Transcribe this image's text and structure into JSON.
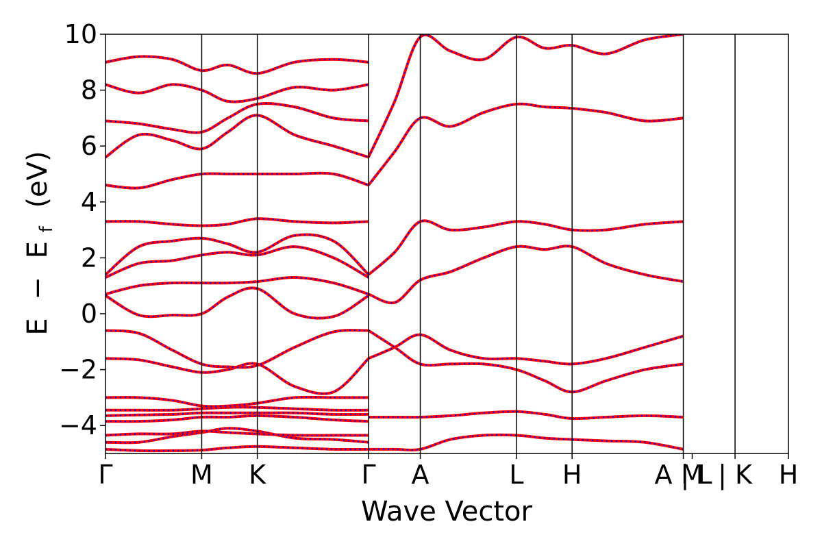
{
  "chart_data": {
    "type": "line",
    "title": "",
    "xlabel": "Wave Vector",
    "ylabel_parts": {
      "E": "E",
      "minus": "−",
      "Ef_main": "E",
      "Ef_sub": "f",
      "unit": "(eV)"
    },
    "ylim": [
      -5,
      10
    ],
    "yticks": [
      -4,
      -2,
      0,
      2,
      4,
      6,
      8,
      10
    ],
    "ytick_labels": [
      "−4",
      "−2",
      "0",
      "2",
      "4",
      "6",
      "8",
      "10"
    ],
    "xlim": [
      0,
      12.28
    ],
    "kpoints": [
      {
        "x": 0,
        "label": "Γ"
      },
      {
        "x": 1.73,
        "label": "M"
      },
      {
        "x": 2.73,
        "label": "K"
      },
      {
        "x": 4.73,
        "label": "Γ"
      },
      {
        "x": 5.66,
        "label": "A"
      },
      {
        "x": 7.39,
        "label": "L"
      },
      {
        "x": 8.39,
        "label": "H"
      },
      {
        "x": 10.39,
        "label": "A | L"
      },
      {
        "x": 10.55,
        "label": "M"
      },
      {
        "x": 11.32,
        "label": "| K"
      },
      {
        "x": 12.28,
        "label": "H"
      }
    ],
    "vlines": [
      1.73,
      2.73,
      4.73,
      5.66,
      7.39,
      8.39,
      10.39,
      11.32
    ],
    "series": [
      {
        "style": "solid",
        "color": "#ff0000"
      },
      {
        "style": "dotted",
        "color": "#0000ff"
      }
    ],
    "bands": [
      {
        "x": [
          0,
          0.6,
          1.2,
          1.73,
          2.2,
          2.73,
          3.4,
          4.1,
          4.73
        ],
        "y": [
          -4.85,
          -4.9,
          -4.9,
          -4.88,
          -4.8,
          -4.75,
          -4.8,
          -4.85,
          -4.85
        ]
      },
      {
        "x": [
          0,
          0.6,
          1.2,
          1.73,
          2.2,
          2.73,
          3.4,
          4.1,
          4.73
        ],
        "y": [
          -4.6,
          -4.6,
          -4.4,
          -4.25,
          -4.1,
          -4.2,
          -4.45,
          -4.5,
          -4.6
        ]
      },
      {
        "x": [
          0,
          0.6,
          1.2,
          1.73,
          2.2,
          2.73,
          3.4,
          4.1,
          4.73
        ],
        "y": [
          -4.35,
          -4.3,
          -4.3,
          -4.2,
          -4.25,
          -4.3,
          -4.35,
          -4.35,
          -4.35
        ]
      },
      {
        "x": [
          0,
          0.6,
          1.2,
          1.73,
          2.2,
          2.73,
          3.4,
          4.1,
          4.73
        ],
        "y": [
          -3.85,
          -3.85,
          -3.8,
          -3.7,
          -3.7,
          -3.65,
          -3.7,
          -3.8,
          -3.85
        ]
      },
      {
        "x": [
          0,
          0.6,
          1.2,
          1.73,
          2.2,
          2.73,
          3.4,
          4.1,
          4.73
        ],
        "y": [
          -3.65,
          -3.62,
          -3.6,
          -3.55,
          -3.55,
          -3.55,
          -3.55,
          -3.6,
          -3.6
        ]
      },
      {
        "x": [
          0,
          0.6,
          1.2,
          1.73,
          2.2,
          2.73,
          3.4,
          4.1,
          4.73
        ],
        "y": [
          -3.45,
          -3.45,
          -3.45,
          -3.4,
          -3.35,
          -3.35,
          -3.4,
          -3.45,
          -3.45
        ]
      },
      {
        "x": [
          0,
          0.6,
          1.2,
          1.73,
          2.2,
          2.73,
          3.4,
          4.1,
          4.73
        ],
        "y": [
          -3.0,
          -3.0,
          -3.1,
          -3.3,
          -3.3,
          -3.2,
          -3.0,
          -3.0,
          -3.0
        ]
      },
      {
        "x": [
          0,
          0.6,
          1.2,
          1.73,
          2.2,
          2.73,
          3.4,
          4.1,
          4.73
        ],
        "y": [
          -1.6,
          -1.65,
          -1.9,
          -2.1,
          -2.0,
          -1.8,
          -2.6,
          -2.8,
          -1.6
        ]
      },
      {
        "x": [
          0,
          0.6,
          1.2,
          1.73,
          2.2,
          2.73,
          3.4,
          4.1,
          4.73
        ],
        "y": [
          -0.6,
          -0.7,
          -1.3,
          -1.8,
          -1.9,
          -1.85,
          -1.2,
          -0.65,
          -0.6
        ]
      },
      {
        "x": [
          0,
          0.6,
          1.2,
          1.73,
          2.2,
          2.73,
          3.4,
          4.1,
          4.73
        ],
        "y": [
          0.65,
          -0.05,
          -0.05,
          0.0,
          0.6,
          0.9,
          0.0,
          -0.1,
          0.65
        ]
      },
      {
        "x": [
          0,
          0.6,
          1.2,
          1.73,
          2.2,
          2.73,
          3.4,
          4.1,
          4.73
        ],
        "y": [
          0.7,
          1.0,
          1.1,
          1.1,
          1.1,
          1.15,
          1.3,
          1.1,
          0.7
        ]
      },
      {
        "x": [
          0,
          0.6,
          1.2,
          1.73,
          2.2,
          2.73,
          3.4,
          4.1,
          4.73
        ],
        "y": [
          1.3,
          1.8,
          1.9,
          2.1,
          2.2,
          2.1,
          2.4,
          2.0,
          1.3
        ]
      },
      {
        "x": [
          0,
          0.6,
          1.2,
          1.73,
          2.2,
          2.73,
          3.4,
          4.1,
          4.73
        ],
        "y": [
          1.4,
          2.4,
          2.6,
          2.7,
          2.5,
          2.2,
          2.8,
          2.6,
          1.4
        ]
      },
      {
        "x": [
          0,
          0.6,
          1.2,
          1.73,
          2.2,
          2.73,
          3.4,
          4.1,
          4.73
        ],
        "y": [
          3.3,
          3.3,
          3.2,
          3.15,
          3.2,
          3.4,
          3.3,
          3.25,
          3.3
        ]
      },
      {
        "x": [
          0,
          0.6,
          1.2,
          1.73,
          2.2,
          2.73,
          3.4,
          4.1,
          4.73
        ],
        "y": [
          4.6,
          4.5,
          4.8,
          5.0,
          5.0,
          5.0,
          5.0,
          5.0,
          4.6
        ]
      },
      {
        "x": [
          0,
          0.6,
          1.2,
          1.73,
          2.2,
          2.73,
          3.4,
          4.1,
          4.73
        ],
        "y": [
          5.6,
          6.4,
          6.2,
          5.9,
          6.5,
          7.1,
          6.4,
          6.0,
          5.6
        ]
      },
      {
        "x": [
          0,
          0.6,
          1.2,
          1.73,
          2.2,
          2.73,
          3.4,
          4.1,
          4.73
        ],
        "y": [
          6.9,
          6.8,
          6.6,
          6.5,
          7.0,
          7.5,
          7.4,
          7.0,
          6.9
        ]
      },
      {
        "x": [
          0,
          0.6,
          1.2,
          1.73,
          2.2,
          2.73,
          3.4,
          4.1,
          4.73
        ],
        "y": [
          8.2,
          7.9,
          8.2,
          8.0,
          7.6,
          7.7,
          8.1,
          8.0,
          8.2
        ]
      },
      {
        "x": [
          0,
          0.6,
          1.2,
          1.73,
          2.2,
          2.73,
          3.4,
          4.1,
          4.73
        ],
        "y": [
          9.0,
          9.2,
          9.1,
          8.7,
          8.9,
          8.6,
          9.0,
          9.1,
          9.0
        ]
      },
      {
        "x": [
          4.73,
          5.2,
          5.66,
          6.2,
          6.8,
          7.39,
          7.9,
          8.39,
          9.0,
          9.7,
          10.39
        ],
        "y": [
          -4.85,
          -4.85,
          -4.85,
          -4.5,
          -4.35,
          -4.35,
          -4.45,
          -4.5,
          -4.55,
          -4.6,
          -4.85
        ]
      },
      {
        "x": [
          4.73,
          5.2,
          5.66,
          6.2,
          6.8,
          7.39,
          7.9,
          8.39,
          9.0,
          9.7,
          10.39
        ],
        "y": [
          -3.7,
          -3.7,
          -3.7,
          -3.65,
          -3.55,
          -3.5,
          -3.6,
          -3.75,
          -3.7,
          -3.65,
          -3.7
        ]
      },
      {
        "x": [
          4.73,
          5.2,
          5.66,
          6.2,
          6.8,
          7.39,
          7.9,
          8.39,
          9.0,
          9.7,
          10.39
        ],
        "y": [
          -1.6,
          -1.2,
          -0.75,
          -1.3,
          -1.6,
          -1.6,
          -1.7,
          -1.8,
          -1.6,
          -1.2,
          -0.8
        ]
      },
      {
        "x": [
          4.73,
          5.2,
          5.66,
          6.2,
          6.8,
          7.39,
          7.9,
          8.39,
          9.0,
          9.7,
          10.39
        ],
        "y": [
          -0.6,
          -1.2,
          -1.8,
          -1.8,
          -1.8,
          -2.0,
          -2.4,
          -2.8,
          -2.4,
          -2.0,
          -1.8
        ]
      },
      {
        "x": [
          4.73,
          5.2,
          5.66,
          6.2,
          6.8,
          7.39,
          7.9,
          8.39,
          9.0,
          9.7,
          10.39
        ],
        "y": [
          0.7,
          0.4,
          1.2,
          1.5,
          2.0,
          2.4,
          2.3,
          2.4,
          1.8,
          1.4,
          1.15
        ]
      },
      {
        "x": [
          4.73,
          5.2,
          5.66,
          6.2,
          6.8,
          7.39,
          7.9,
          8.39,
          9.0,
          9.7,
          10.39
        ],
        "y": [
          1.4,
          2.2,
          3.3,
          3.0,
          3.1,
          3.3,
          3.2,
          3.0,
          3.0,
          3.2,
          3.3
        ]
      },
      {
        "x": [
          4.73,
          5.2,
          5.66,
          6.2,
          6.8,
          7.39,
          7.9,
          8.39,
          9.0,
          9.7,
          10.39
        ],
        "y": [
          4.6,
          5.8,
          7.0,
          6.7,
          7.2,
          7.5,
          7.4,
          7.35,
          7.2,
          6.9,
          7.0
        ]
      },
      {
        "x": [
          4.73,
          5.2,
          5.66,
          6.2,
          6.8,
          7.39,
          7.9,
          8.39,
          9.0,
          9.7,
          10.39
        ],
        "y": [
          5.6,
          7.6,
          9.9,
          9.4,
          9.1,
          9.9,
          9.5,
          9.6,
          9.3,
          9.8,
          10.0
        ]
      }
    ]
  }
}
